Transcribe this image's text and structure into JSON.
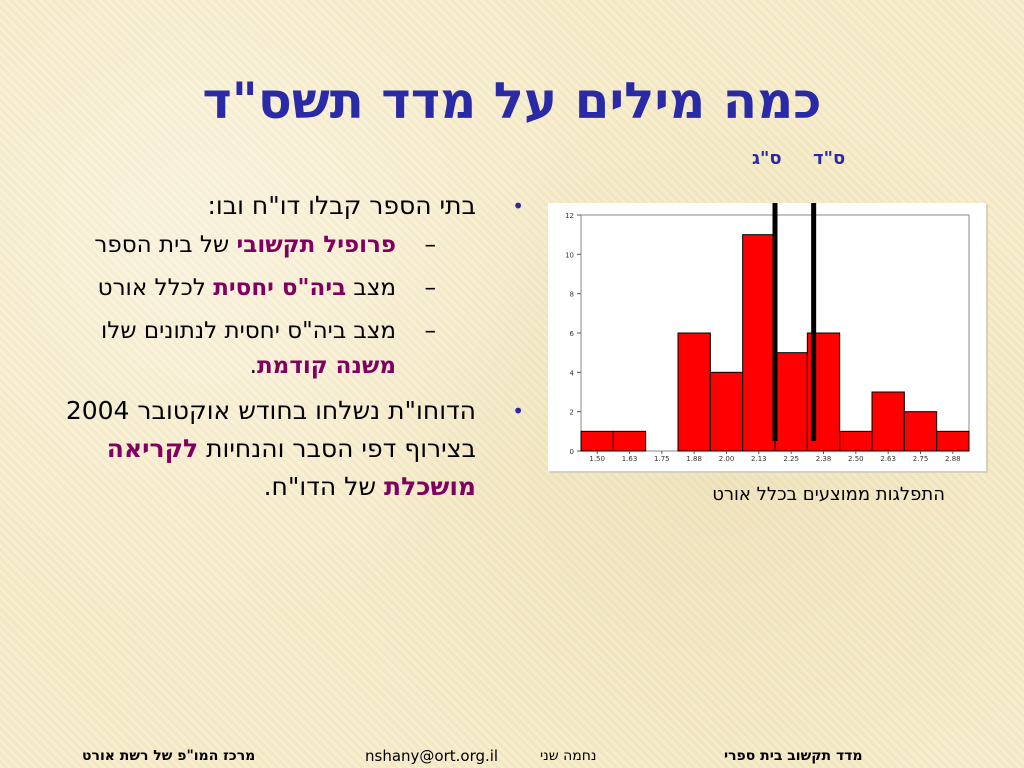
{
  "title": "כמה מילים על מדד תשס\"ד",
  "bullets": [
    {
      "text": "בתי הספר קבלו  דו\"ח ובו:",
      "subitems": [
        {
          "em": "פרופיל תקשובי",
          "after": " של בית הספר"
        },
        {
          "before": "מצב ",
          "em": "ביה\"ס יחסית",
          "after": " לכלל אורט"
        },
        {
          "before": "מצב ביה\"ס יחסית לנתונים שלו ",
          "em": "משנה קודמת",
          "after": "."
        }
      ]
    },
    {
      "before": "הדוחו\"ת נשלחו  בחודש אוקטובר 2004 בצירוף דפי הסבר והנחיות ",
      "em": "לקריאה מושכלת",
      "after": " של הדו\"ח."
    }
  ],
  "marker_labels": {
    "prev": "ס\"ג",
    "curr": "ס\"ד"
  },
  "caption": "התפלגות ממוצעים בכלל אורט",
  "footer": {
    "left": "מרכז המו\"פ  של רשת אורט",
    "email": "nshany@ort.org.il",
    "name": "נחמה שני",
    "right": "מדד תקשוב בית ספרי"
  },
  "colors": {
    "title": "#2a2aa6",
    "emphasis": "#800060",
    "bar": "#ff0000",
    "bullet": "#2a2aa6"
  },
  "chart_data": {
    "type": "bar",
    "categories": [
      "1.50",
      "1.63",
      "1.75",
      "1.88",
      "2.00",
      "2.13",
      "2.25",
      "2.38",
      "2.50",
      "2.63",
      "2.75",
      "2.88"
    ],
    "values": [
      1,
      1,
      0,
      6,
      4,
      11,
      5,
      6,
      1,
      3,
      2,
      1
    ],
    "ylim": [
      0,
      12
    ],
    "yticks": [
      "0",
      "2",
      "4",
      "6",
      "8",
      "10",
      "12"
    ],
    "markers": [
      {
        "label": "ס\"ג",
        "x": 2.19
      },
      {
        "label": "ס\"ד",
        "x": 2.34
      }
    ],
    "title": "",
    "xlabel": "",
    "ylabel": ""
  }
}
